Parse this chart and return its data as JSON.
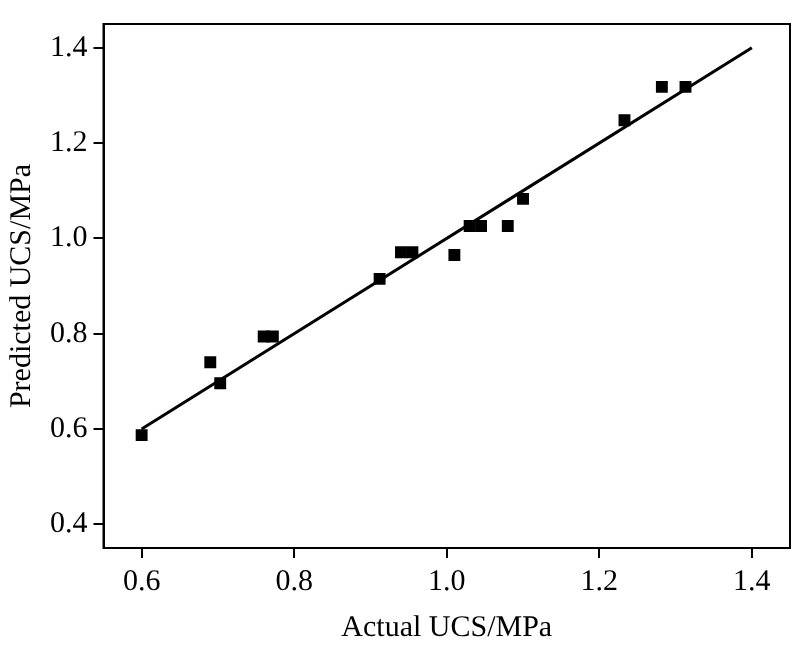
{
  "chart_data": {
    "type": "scatter",
    "xlabel": "Actual UCS/MPa",
    "ylabel": "Predicted UCS/MPa",
    "xlim": [
      0.55,
      1.45
    ],
    "xticks": [
      {
        "value": 0.6,
        "label": "0.6"
      },
      {
        "value": 0.8,
        "label": "0.8"
      },
      {
        "value": 1.0,
        "label": "1.0"
      },
      {
        "value": 1.2,
        "label": "1.2"
      },
      {
        "value": 1.4,
        "label": "1.4"
      }
    ],
    "ylim": [
      0.35,
      1.45
    ],
    "yticks": [
      {
        "value": 0.4,
        "label": "0.4"
      },
      {
        "value": 0.6,
        "label": "0.6"
      },
      {
        "value": 0.8,
        "label": "0.8"
      },
      {
        "value": 1.0,
        "label": "1.0"
      },
      {
        "value": 1.2,
        "label": "1.2"
      },
      {
        "value": 1.4,
        "label": "1.4"
      }
    ],
    "grid": false,
    "legend": false,
    "marker": "square",
    "series": [
      {
        "color": "#000000",
        "x": [
          0.6,
          0.69,
          0.703,
          0.76,
          0.772,
          0.912,
          0.94,
          0.955,
          1.01,
          1.03,
          1.045,
          1.08,
          1.1,
          1.233,
          1.282,
          1.313
        ],
        "values": [
          0.587,
          0.74,
          0.696,
          0.794,
          0.794,
          0.915,
          0.971,
          0.971,
          0.965,
          1.026,
          1.026,
          1.026,
          1.083,
          1.248,
          1.318,
          1.318
        ]
      },
      {
        "type": "line",
        "color": "#000000",
        "marker": "none",
        "line_style": "solid",
        "x": [
          0.6,
          1.4
        ],
        "values": [
          0.6,
          1.4
        ]
      }
    ]
  }
}
